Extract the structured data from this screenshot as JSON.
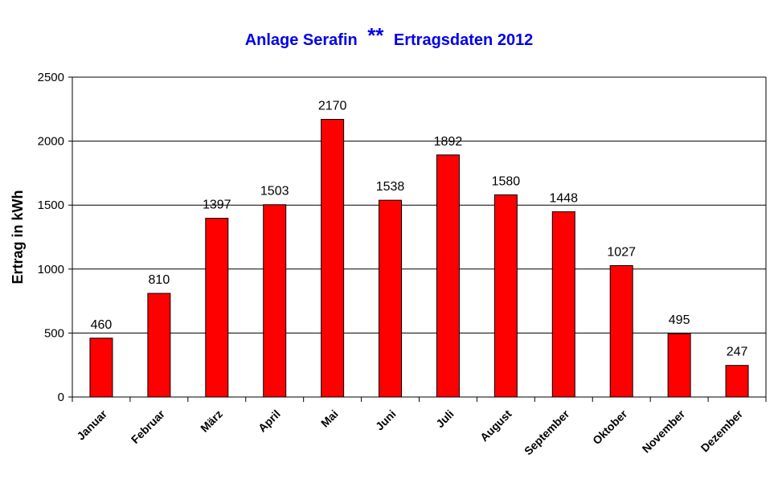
{
  "chart_data": {
    "type": "bar",
    "title_prefix": "Anlage Serafin",
    "title_stars": "**",
    "title_suffix": "Ertragsdaten 2012",
    "ylabel": "Ertrag in kWh",
    "xlabel": "",
    "categories": [
      "Januar",
      "Februar",
      "März",
      "April",
      "Mai",
      "Juni",
      "Juli",
      "August",
      "September",
      "Oktober",
      "November",
      "Dezember"
    ],
    "values": [
      460,
      810,
      1397,
      1503,
      2170,
      1538,
      1892,
      1580,
      1448,
      1027,
      495,
      247
    ],
    "ylim": [
      0,
      2500
    ],
    "yticks": [
      "0",
      "500",
      "1000",
      "1500",
      "2000",
      "2500"
    ],
    "grid": true,
    "colors": {
      "bar": "#ff0000",
      "bar_edge": "#000000",
      "title": "#0000ee"
    }
  }
}
